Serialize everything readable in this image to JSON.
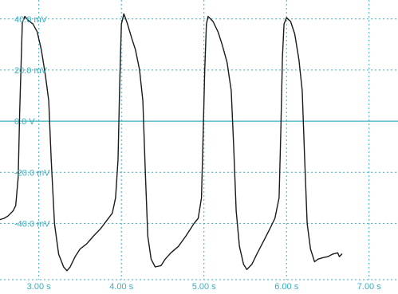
{
  "chart_data": {
    "type": "line",
    "title": "",
    "xlabel": "",
    "ylabel": "",
    "xlim": [
      2.53,
      7.35
    ],
    "ylim": [
      -62,
      41.8
    ],
    "x_ticks": [
      {
        "value": 3.0,
        "label": "3.00 s"
      },
      {
        "value": 4.0,
        "label": "4.00 s"
      },
      {
        "value": 5.0,
        "label": "5.00 s"
      },
      {
        "value": 6.0,
        "label": "6.00 s"
      },
      {
        "value": 7.0,
        "label": "7.00 s"
      }
    ],
    "y_ticks": [
      {
        "value": 40,
        "label": "40.0 mV"
      },
      {
        "value": 20,
        "label": "20.0 mV"
      },
      {
        "value": 0,
        "label": "0.0 V"
      },
      {
        "value": -20,
        "label": "-20.0 mV"
      },
      {
        "value": -40,
        "label": "-40.0 mV"
      }
    ],
    "grid": true,
    "zero_line": true,
    "colors": {
      "grid": "#3aaec0",
      "zero_line": "#3aaec0",
      "trace": "#1a1a1a",
      "tick_label": "#3aaec0"
    },
    "series": [
      {
        "values": [
          [
            2.53,
            -38.5
          ],
          [
            2.58,
            -38.0
          ],
          [
            2.63,
            -37.0
          ],
          [
            2.69,
            -35.0
          ],
          [
            2.72,
            -33.0
          ],
          [
            2.75,
            -22.0
          ],
          [
            2.77,
            5.0
          ],
          [
            2.8,
            38.5
          ],
          [
            2.83,
            41.0
          ],
          [
            2.87,
            39.5
          ],
          [
            2.93,
            38.0
          ],
          [
            2.98,
            35.0
          ],
          [
            3.03,
            28.0
          ],
          [
            3.08,
            18.0
          ],
          [
            3.12,
            8.0
          ],
          [
            3.15,
            -15.0
          ],
          [
            3.19,
            -40.0
          ],
          [
            3.24,
            -52.0
          ],
          [
            3.3,
            -57.0
          ],
          [
            3.34,
            -58.5
          ],
          [
            3.38,
            -57.0
          ],
          [
            3.44,
            -53.0
          ],
          [
            3.5,
            -50.0
          ],
          [
            3.58,
            -48.0
          ],
          [
            3.66,
            -45.0
          ],
          [
            3.75,
            -42.0
          ],
          [
            3.82,
            -39.0
          ],
          [
            3.89,
            -36.0
          ],
          [
            3.93,
            -30.0
          ],
          [
            3.96,
            -15.0
          ],
          [
            3.98,
            15.0
          ],
          [
            4.0,
            38.0
          ],
          [
            4.03,
            42.0
          ],
          [
            4.07,
            38.5
          ],
          [
            4.12,
            33.0
          ],
          [
            4.17,
            28.0
          ],
          [
            4.22,
            20.0
          ],
          [
            4.26,
            8.0
          ],
          [
            4.29,
            -20.0
          ],
          [
            4.32,
            -45.0
          ],
          [
            4.36,
            -54.0
          ],
          [
            4.41,
            -57.0
          ],
          [
            4.48,
            -56.5
          ],
          [
            4.53,
            -54.0
          ],
          [
            4.6,
            -51.5
          ],
          [
            4.69,
            -49.0
          ],
          [
            4.78,
            -45.0
          ],
          [
            4.88,
            -40.0
          ],
          [
            4.93,
            -38.0
          ],
          [
            4.97,
            -30.0
          ],
          [
            4.99,
            -5.0
          ],
          [
            5.01,
            20.0
          ],
          [
            5.03,
            38.0
          ],
          [
            5.05,
            41.0
          ],
          [
            5.11,
            39.0
          ],
          [
            5.17,
            35.0
          ],
          [
            5.22,
            30.0
          ],
          [
            5.28,
            23.0
          ],
          [
            5.33,
            12.0
          ],
          [
            5.36,
            -10.0
          ],
          [
            5.39,
            -35.0
          ],
          [
            5.43,
            -49.0
          ],
          [
            5.48,
            -56.0
          ],
          [
            5.52,
            -58.0
          ],
          [
            5.58,
            -56.0
          ],
          [
            5.64,
            -52.0
          ],
          [
            5.72,
            -47.0
          ],
          [
            5.8,
            -42.0
          ],
          [
            5.86,
            -38.0
          ],
          [
            5.91,
            -30.0
          ],
          [
            5.93,
            -5.0
          ],
          [
            5.95,
            25.0
          ],
          [
            5.97,
            38.0
          ],
          [
            6.0,
            40.5
          ],
          [
            6.05,
            39.0
          ],
          [
            6.1,
            34.0
          ],
          [
            6.15,
            24.0
          ],
          [
            6.19,
            12.0
          ],
          [
            6.22,
            -15.0
          ],
          [
            6.25,
            -40.0
          ],
          [
            6.29,
            -50.0
          ],
          [
            6.34,
            -55.0
          ],
          [
            6.38,
            -54.0
          ],
          [
            6.43,
            -53.5
          ],
          [
            6.5,
            -53.0
          ],
          [
            6.56,
            -52.0
          ],
          [
            6.62,
            -51.5
          ],
          [
            6.64,
            -53.0
          ],
          [
            6.67,
            -52.0
          ]
        ]
      }
    ]
  }
}
